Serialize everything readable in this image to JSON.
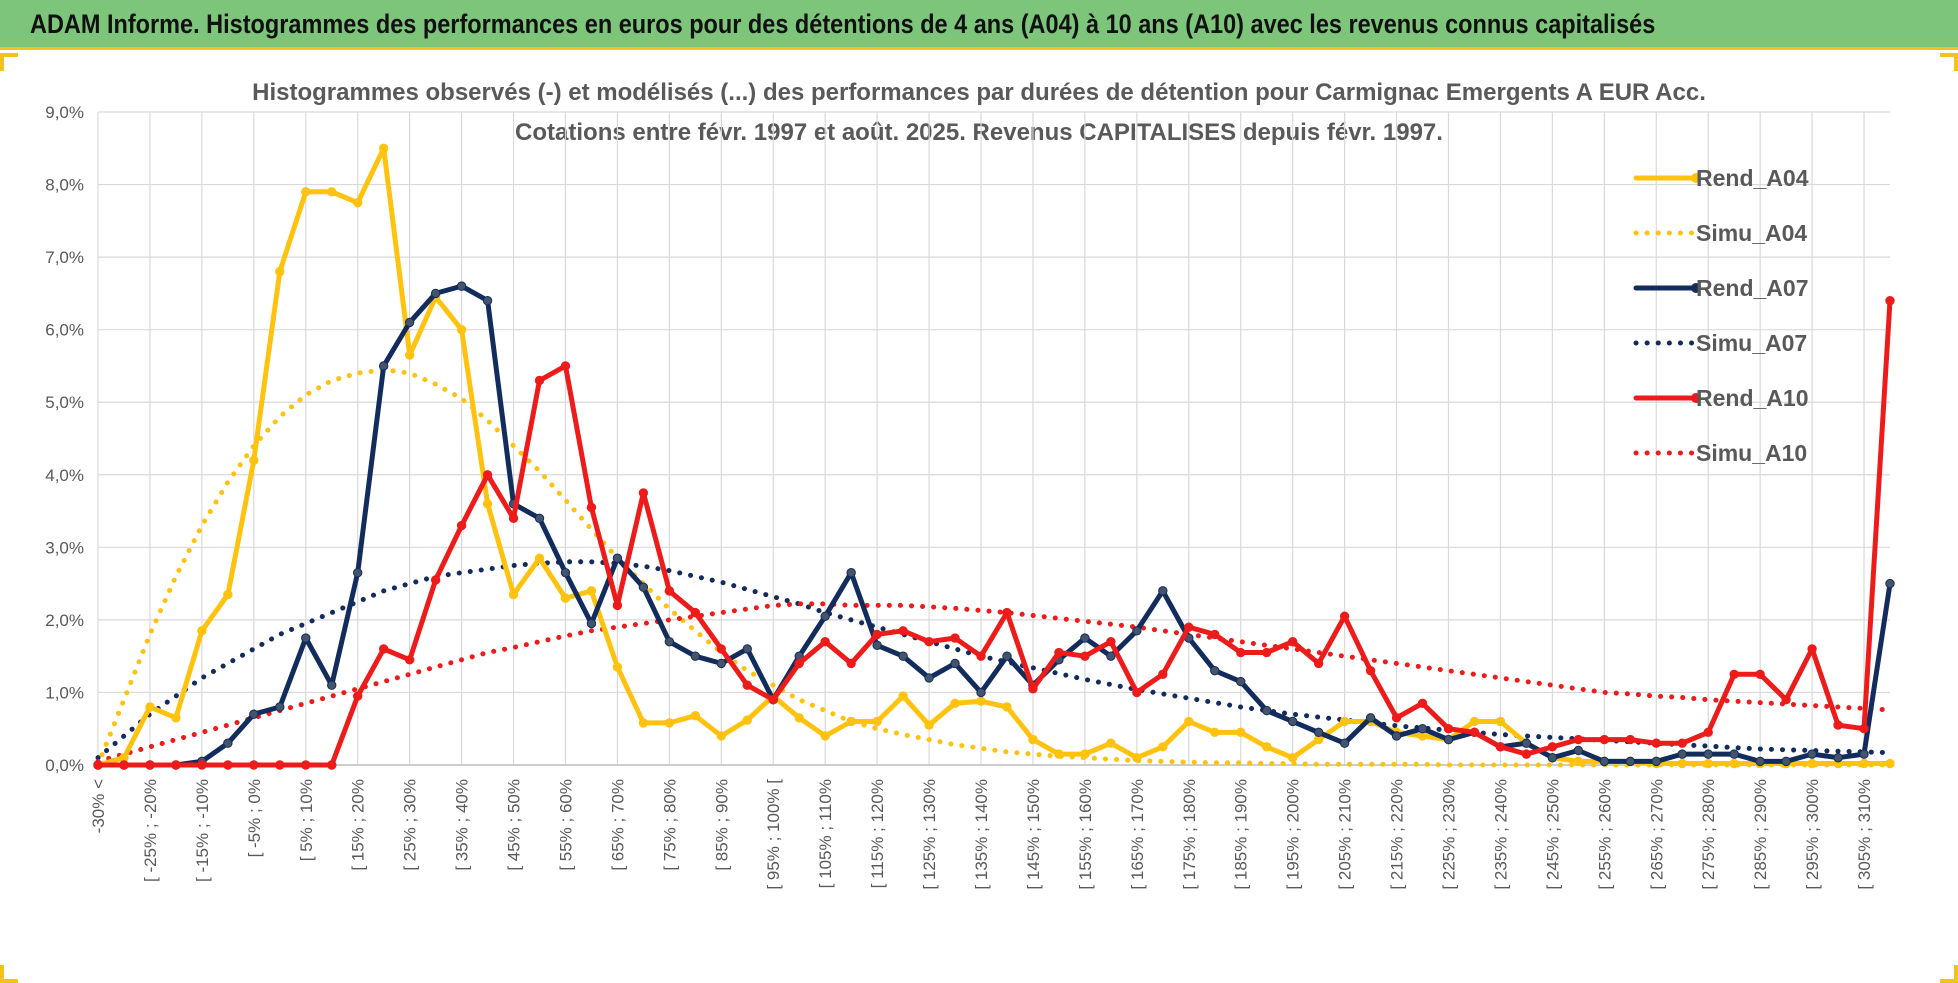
{
  "header": {
    "title": "ADAM Informe. Histogrammes des performances en euros pour des détentions de 4 ans (A04) à 10 ans (A10) avec les revenus connus capitalisés"
  },
  "colors": {
    "header_bg": "#7dc57a",
    "accent": "#f3c31a",
    "a04": "#ffc20e",
    "a07": "#132c5e",
    "a10": "#ee1b1b",
    "grid": "#d9d9d9"
  },
  "chart_data": {
    "type": "line",
    "title": "Histogrammes observés (-) et modélisés (...) des performances par durées de détention pour Carmignac Emergents A EUR Acc.",
    "subtitle": "Cotations entre févr. 1997 et août. 2025. Revenus CAPITALISES depuis févr. 1997.",
    "ylim": [
      0,
      9
    ],
    "y_ticks": [
      "0,0%",
      "1,0%",
      "2,0%",
      "3,0%",
      "4,0%",
      "5,0%",
      "6,0%",
      "7,0%",
      "8,0%",
      "9,0%"
    ],
    "x_tick_labels": [
      "-30% <",
      "[ -25% ; -20%",
      "[ -15% ; -10%",
      "[ -5% ; 0%",
      "[ 5% ; 10%",
      "[ 15% ; 20%",
      "[ 25% ; 30%",
      "[ 35% ; 40%",
      "[ 45% ; 50%",
      "[ 55% ; 60%",
      "[ 65% ; 70%",
      "[ 75% ; 80%",
      "[ 85% ; 90%",
      "[ 95% ; 100% [",
      "[ 105% ; 110%",
      "[ 115% ; 120%",
      "[ 125% ; 130%",
      "[ 135% ; 140%",
      "[ 145% ; 150%",
      "[ 155% ; 160%",
      "[ 165% ; 170%",
      "[ 175% ; 180%",
      "[ 185% ; 190%",
      "[ 195% ; 200%",
      "[ 205% ; 210%",
      "[ 215% ; 220%",
      "[ 225% ; 230%",
      "[ 235% ; 240%",
      "[ 245% ; 250%",
      "[ 255% ; 260%",
      "[ 265% ; 270%",
      "[ 275% ; 280%",
      "[ 285% ; 290%",
      "[ 295% ; 300%",
      "[ 305% ; 310%"
    ],
    "x_tick_bins": [
      0,
      2,
      4,
      6,
      8,
      10,
      12,
      14,
      16,
      18,
      20,
      22,
      24,
      26,
      28,
      30,
      32,
      34,
      36,
      38,
      40,
      42,
      44,
      46,
      48,
      50,
      52,
      54,
      56,
      58,
      60,
      62,
      64,
      66,
      68
    ],
    "bin_count": 70,
    "grid": true,
    "legend_position": "right",
    "series": [
      {
        "name": "Rend_A04",
        "style": "solid",
        "color": "#ffc20e",
        "values": [
          0,
          0.1,
          0.8,
          0.65,
          1.85,
          2.35,
          4.2,
          6.8,
          7.9,
          7.9,
          7.75,
          8.5,
          5.65,
          6.45,
          6.0,
          3.6,
          2.35,
          2.85,
          2.3,
          2.4,
          1.35,
          0.58,
          0.58,
          0.68,
          0.4,
          0.62,
          0.95,
          0.65,
          0.4,
          0.6,
          0.6,
          0.95,
          0.55,
          0.85,
          0.88,
          0.8,
          0.35,
          0.15,
          0.15,
          0.3,
          0.1,
          0.25,
          0.6,
          0.45,
          0.45,
          0.25,
          0.1,
          0.35,
          0.6,
          0.6,
          0.45,
          0.4,
          0.35,
          0.6,
          0.6,
          0.3,
          0.1,
          0.05,
          0.05,
          0.05,
          0.02,
          0.02,
          0.02,
          0.02,
          0.02,
          0.02,
          0.02,
          0.02,
          0.02,
          0.02
        ]
      },
      {
        "name": "Simu_A04",
        "style": "dotted",
        "color": "#ffc20e",
        "values": [
          0.0,
          0.9,
          1.8,
          2.6,
          3.3,
          3.9,
          4.4,
          4.8,
          5.1,
          5.3,
          5.4,
          5.45,
          5.4,
          5.25,
          5.05,
          4.75,
          4.4,
          4.05,
          3.65,
          3.25,
          2.85,
          2.5,
          2.15,
          1.85,
          1.55,
          1.3,
          1.1,
          0.9,
          0.75,
          0.6,
          0.5,
          0.42,
          0.35,
          0.28,
          0.23,
          0.18,
          0.15,
          0.12,
          0.1,
          0.08,
          0.06,
          0.05,
          0.04,
          0.03,
          0.03,
          0.02,
          0.02,
          0.01,
          0.01,
          0.01,
          0.01,
          0.01,
          0.0,
          0.0,
          0.0,
          0.0,
          0.0,
          0.0,
          0.0,
          0.0,
          0.0,
          0.0,
          0.0,
          0.0,
          0.0,
          0.0,
          0.0,
          0.0,
          0.0,
          0.0
        ]
      },
      {
        "name": "Rend_A07",
        "style": "solid",
        "color": "#132c5e",
        "values": [
          0,
          0,
          0,
          0,
          0.05,
          0.3,
          0.7,
          0.8,
          1.75,
          1.1,
          2.65,
          5.5,
          6.1,
          6.5,
          6.6,
          6.4,
          3.6,
          3.4,
          2.65,
          1.95,
          2.85,
          2.45,
          1.7,
          1.5,
          1.4,
          1.6,
          0.9,
          1.5,
          2.05,
          2.65,
          1.65,
          1.5,
          1.2,
          1.4,
          1.0,
          1.5,
          1.1,
          1.45,
          1.75,
          1.5,
          1.85,
          2.4,
          1.75,
          1.3,
          1.15,
          0.75,
          0.6,
          0.45,
          0.3,
          0.65,
          0.4,
          0.5,
          0.35,
          0.45,
          0.25,
          0.3,
          0.1,
          0.2,
          0.05,
          0.05,
          0.05,
          0.15,
          0.15,
          0.15,
          0.05,
          0.05,
          0.15,
          0.1,
          0.15,
          2.5
        ]
      },
      {
        "name": "Simu_A07",
        "style": "dotted",
        "color": "#132c5e",
        "values": [
          0.1,
          0.4,
          0.7,
          0.95,
          1.2,
          1.4,
          1.6,
          1.8,
          1.95,
          2.1,
          2.25,
          2.4,
          2.5,
          2.6,
          2.65,
          2.7,
          2.75,
          2.78,
          2.8,
          2.8,
          2.78,
          2.74,
          2.68,
          2.6,
          2.52,
          2.42,
          2.32,
          2.22,
          2.1,
          2.0,
          1.9,
          1.8,
          1.7,
          1.6,
          1.5,
          1.42,
          1.34,
          1.26,
          1.18,
          1.11,
          1.04,
          0.98,
          0.92,
          0.86,
          0.8,
          0.75,
          0.7,
          0.66,
          0.62,
          0.58,
          0.54,
          0.51,
          0.48,
          0.45,
          0.42,
          0.4,
          0.38,
          0.36,
          0.34,
          0.32,
          0.3,
          0.28,
          0.26,
          0.24,
          0.22,
          0.21,
          0.2,
          0.19,
          0.18,
          0.17
        ]
      },
      {
        "name": "Rend_A10",
        "style": "solid",
        "color": "#ee1b1b",
        "values": [
          0,
          0,
          0,
          0,
          0,
          0,
          0,
          0,
          0,
          0,
          0.95,
          1.6,
          1.45,
          2.55,
          3.3,
          4.0,
          3.4,
          5.3,
          5.5,
          3.55,
          2.2,
          3.75,
          2.4,
          2.1,
          1.6,
          1.1,
          0.9,
          1.4,
          1.7,
          1.4,
          1.8,
          1.85,
          1.7,
          1.75,
          1.5,
          2.1,
          1.05,
          1.55,
          1.5,
          1.7,
          1.0,
          1.25,
          1.9,
          1.8,
          1.55,
          1.55,
          1.7,
          1.4,
          2.05,
          1.3,
          0.65,
          0.85,
          0.5,
          0.45,
          0.25,
          0.15,
          0.25,
          0.35,
          0.35,
          0.35,
          0.3,
          0.3,
          0.45,
          1.25,
          1.25,
          0.9,
          1.6,
          0.55,
          0.5,
          6.4
        ]
      },
      {
        "name": "Simu_A10",
        "style": "dotted",
        "color": "#ee1b1b",
        "values": [
          0.05,
          0.15,
          0.25,
          0.35,
          0.45,
          0.55,
          0.65,
          0.75,
          0.85,
          0.95,
          1.05,
          1.15,
          1.25,
          1.35,
          1.45,
          1.55,
          1.62,
          1.7,
          1.78,
          1.85,
          1.9,
          1.95,
          2.0,
          2.05,
          2.1,
          2.15,
          2.2,
          2.22,
          2.22,
          2.2,
          2.2,
          2.2,
          2.18,
          2.16,
          2.13,
          2.1,
          2.06,
          2.02,
          1.98,
          1.94,
          1.9,
          1.85,
          1.8,
          1.75,
          1.7,
          1.65,
          1.6,
          1.55,
          1.5,
          1.45,
          1.4,
          1.35,
          1.3,
          1.25,
          1.2,
          1.15,
          1.1,
          1.05,
          1.0,
          0.98,
          0.95,
          0.93,
          0.9,
          0.88,
          0.86,
          0.84,
          0.82,
          0.8,
          0.78,
          0.76
        ]
      }
    ]
  }
}
